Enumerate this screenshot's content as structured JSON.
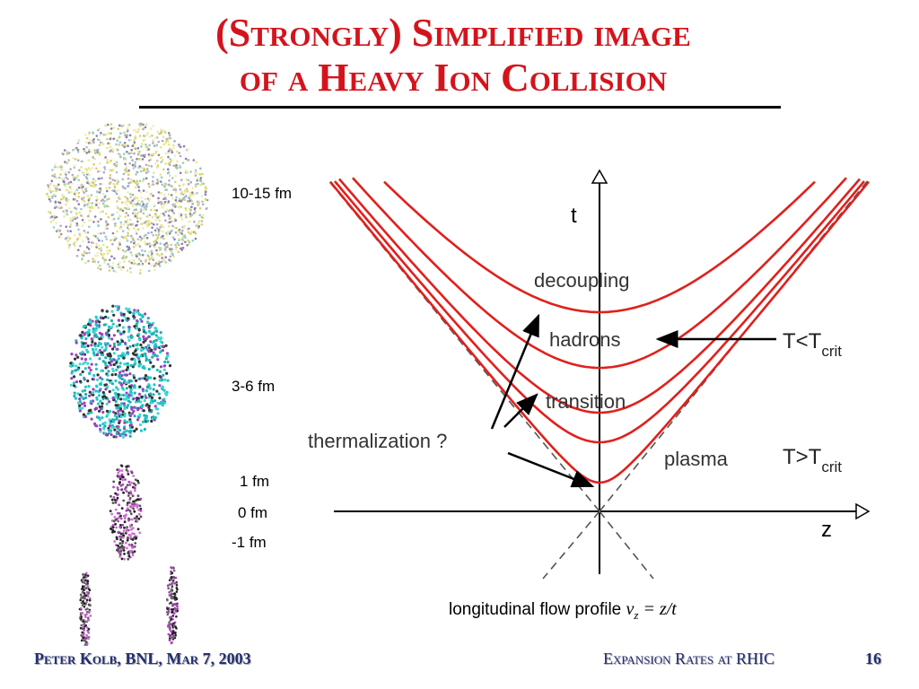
{
  "title": {
    "line1": "(Strongly) Simplified image",
    "line2": "of a Heavy Ion Collision"
  },
  "time_labels": [
    "10-15 fm",
    "3-6 fm",
    "1 fm",
    "0 fm",
    "-1 fm"
  ],
  "diagram": {
    "t_axis": "t",
    "z_axis": "z",
    "decoupling": "decoupling",
    "hadrons": "hadrons",
    "transition": "transition",
    "plasma": "plasma",
    "thermalization": "thermalization ?",
    "below_crit": {
      "main": "T<T",
      "sub": "crit"
    },
    "above_crit": {
      "main": "T>T",
      "sub": "crit"
    }
  },
  "caption": {
    "text": "longitudinal flow profile",
    "v": "v",
    "sub": "z",
    "rest": "= z/t"
  },
  "footer": {
    "left": "Peter Kolb, BNL, Mar 7, 2003",
    "right": "Expansion Rates at RHIC",
    "page": "16"
  }
}
